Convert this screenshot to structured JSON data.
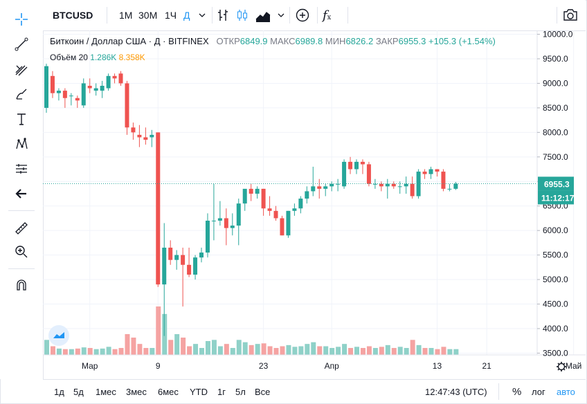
{
  "toolbar": {
    "symbol": "BTCUSD",
    "intervals": [
      "1M",
      "30M",
      "1Ч",
      "Д"
    ],
    "active_interval": "Д"
  },
  "legend": {
    "title": "Биткоин / Доллар США · Д · BITFINEX",
    "open_label": "ОТКР",
    "open": "6849.9",
    "high_label": "МАКС",
    "high": "6989.8",
    "low_label": "МИН",
    "low": "6826.2",
    "close_label": "ЗАКР",
    "close": "6955.3",
    "change": "+105.3 (+1.54%)",
    "volume_label": "Объём 20",
    "volume_1": "1.286K",
    "volume_2": "8.358K"
  },
  "price_label": "6955.3",
  "countdown_label": "11:12:17",
  "colors": {
    "up": "#26a69a",
    "down": "#ef5350",
    "vol_up": "#8fd1c8",
    "vol_down": "#f5a3a2",
    "accent": "#2196f3",
    "ma": "#ff9800"
  },
  "bottom": {
    "ranges": [
      "1д",
      "5д",
      "1мес",
      "3мес",
      "6мес",
      "YTD",
      "1г",
      "5л",
      "Все"
    ],
    "time": "12:47:43 (UTC)",
    "percent": "%",
    "log": "лог",
    "auto": "авто"
  },
  "chart_data": {
    "type": "candlestick",
    "title": "Биткоин / Доллар США · Д · BITFINEX",
    "y_ticks": [
      "10000.0",
      "9500.0",
      "9000.0",
      "8500.0",
      "8000.0",
      "7500.0",
      "7000.0",
      "6500.0",
      "6000.0",
      "5500.0",
      "5000.0",
      "4500.0",
      "4000.0",
      "3500.0"
    ],
    "ylim": [
      3450,
      10050
    ],
    "x_ticks": [
      "Мар",
      "9",
      "23",
      "Апр",
      "13",
      "21",
      "Май"
    ],
    "x_tick_index": [
      7,
      18,
      35,
      46,
      63,
      71,
      85
    ],
    "last_price": 6955.3,
    "candles": [
      {
        "o": 8500,
        "h": 9400,
        "l": 8400,
        "c": 9350,
        "v": 2.6
      },
      {
        "o": 9150,
        "h": 9250,
        "l": 8700,
        "c": 8800,
        "v": 1.5
      },
      {
        "o": 8800,
        "h": 8900,
        "l": 8650,
        "c": 8850,
        "v": 1.1
      },
      {
        "o": 8850,
        "h": 8900,
        "l": 8500,
        "c": 8700,
        "v": 1.0
      },
      {
        "o": 8750,
        "h": 8800,
        "l": 8550,
        "c": 8750,
        "v": 1.0
      },
      {
        "o": 8700,
        "h": 8750,
        "l": 8500,
        "c": 8650,
        "v": 1.1
      },
      {
        "o": 8550,
        "h": 9100,
        "l": 8500,
        "c": 9000,
        "v": 1.3
      },
      {
        "o": 8950,
        "h": 9100,
        "l": 8800,
        "c": 8900,
        "v": 1.2
      },
      {
        "o": 8850,
        "h": 9000,
        "l": 8750,
        "c": 8900,
        "v": 1.0
      },
      {
        "o": 8850,
        "h": 9050,
        "l": 8700,
        "c": 8950,
        "v": 1.1
      },
      {
        "o": 8900,
        "h": 9200,
        "l": 8850,
        "c": 9150,
        "v": 1.4
      },
      {
        "o": 9150,
        "h": 9200,
        "l": 9000,
        "c": 9100,
        "v": 1.0
      },
      {
        "o": 9200,
        "h": 9250,
        "l": 8950,
        "c": 9000,
        "v": 1.2
      },
      {
        "o": 9000,
        "h": 9050,
        "l": 7950,
        "c": 8100,
        "v": 3.6
      },
      {
        "o": 8100,
        "h": 8200,
        "l": 7850,
        "c": 8000,
        "v": 3.0
      },
      {
        "o": 7950,
        "h": 8150,
        "l": 7700,
        "c": 7900,
        "v": 1.9
      },
      {
        "o": 7900,
        "h": 8100,
        "l": 7750,
        "c": 7850,
        "v": 1.2
      },
      {
        "o": 7900,
        "h": 8050,
        "l": 7700,
        "c": 7950,
        "v": 1.2
      },
      {
        "o": 8000,
        "h": 8000,
        "l": 4850,
        "c": 4900,
        "v": 8.4
      },
      {
        "o": 4900,
        "h": 6150,
        "l": 3850,
        "c": 5650,
        "v": 7.1
      },
      {
        "o": 5650,
        "h": 5800,
        "l": 5300,
        "c": 5400,
        "v": 2.6
      },
      {
        "o": 5400,
        "h": 5600,
        "l": 5200,
        "c": 5500,
        "v": 3.6
      },
      {
        "o": 5500,
        "h": 5650,
        "l": 4450,
        "c": 5300,
        "v": 3.0
      },
      {
        "o": 5300,
        "h": 5650,
        "l": 5050,
        "c": 5100,
        "v": 1.5
      },
      {
        "o": 5100,
        "h": 5500,
        "l": 5000,
        "c": 5450,
        "v": 1.9
      },
      {
        "o": 5450,
        "h": 5650,
        "l": 5350,
        "c": 5550,
        "v": 1.2
      },
      {
        "o": 5550,
        "h": 6350,
        "l": 5450,
        "c": 6200,
        "v": 2.4
      },
      {
        "o": 6200,
        "h": 6950,
        "l": 5800,
        "c": 6200,
        "v": 2.6
      },
      {
        "o": 6200,
        "h": 6600,
        "l": 6100,
        "c": 6250,
        "v": 1.5
      },
      {
        "o": 6250,
        "h": 6450,
        "l": 5700,
        "c": 6050,
        "v": 1.9
      },
      {
        "o": 6050,
        "h": 6350,
        "l": 5900,
        "c": 6100,
        "v": 1.2
      },
      {
        "o": 6100,
        "h": 6650,
        "l": 5700,
        "c": 6550,
        "v": 2.6
      },
      {
        "o": 6550,
        "h": 6800,
        "l": 6400,
        "c": 6850,
        "v": 2.2
      },
      {
        "o": 6850,
        "h": 6950,
        "l": 6600,
        "c": 6750,
        "v": 1.7
      },
      {
        "o": 6750,
        "h": 6900,
        "l": 6650,
        "c": 6850,
        "v": 1.9
      },
      {
        "o": 6850,
        "h": 6850,
        "l": 6300,
        "c": 6450,
        "v": 2.0
      },
      {
        "o": 6450,
        "h": 6700,
        "l": 6300,
        "c": 6400,
        "v": 1.5
      },
      {
        "o": 6400,
        "h": 6500,
        "l": 6200,
        "c": 6250,
        "v": 1.2
      },
      {
        "o": 6250,
        "h": 6300,
        "l": 5900,
        "c": 5900,
        "v": 1.5
      },
      {
        "o": 5900,
        "h": 6400,
        "l": 5850,
        "c": 6400,
        "v": 1.7
      },
      {
        "o": 6400,
        "h": 6550,
        "l": 6300,
        "c": 6450,
        "v": 1.4
      },
      {
        "o": 6450,
        "h": 6700,
        "l": 6350,
        "c": 6650,
        "v": 1.5
      },
      {
        "o": 6650,
        "h": 6900,
        "l": 6550,
        "c": 6800,
        "v": 1.9
      },
      {
        "o": 6800,
        "h": 7300,
        "l": 6700,
        "c": 6900,
        "v": 2.2
      },
      {
        "o": 6900,
        "h": 7050,
        "l": 6650,
        "c": 6850,
        "v": 1.5
      },
      {
        "o": 6850,
        "h": 6950,
        "l": 6700,
        "c": 6900,
        "v": 1.5
      },
      {
        "o": 6900,
        "h": 7000,
        "l": 6800,
        "c": 6950,
        "v": 1.2
      },
      {
        "o": 6950,
        "h": 7050,
        "l": 6800,
        "c": 6950,
        "v": 1.4
      },
      {
        "o": 6900,
        "h": 7450,
        "l": 6850,
        "c": 7400,
        "v": 1.9
      },
      {
        "o": 7400,
        "h": 7500,
        "l": 7150,
        "c": 7250,
        "v": 1.2
      },
      {
        "o": 7250,
        "h": 7450,
        "l": 7150,
        "c": 7400,
        "v": 1.4
      },
      {
        "o": 7400,
        "h": 7450,
        "l": 7150,
        "c": 7350,
        "v": 1.2
      },
      {
        "o": 7350,
        "h": 7400,
        "l": 6900,
        "c": 6950,
        "v": 1.5
      },
      {
        "o": 6950,
        "h": 7050,
        "l": 6850,
        "c": 6950,
        "v": 1.2
      },
      {
        "o": 6950,
        "h": 7000,
        "l": 6800,
        "c": 6900,
        "v": 1.4
      },
      {
        "o": 6900,
        "h": 7050,
        "l": 6650,
        "c": 6950,
        "v": 1.7
      },
      {
        "o": 6950,
        "h": 7000,
        "l": 6850,
        "c": 6900,
        "v": 1.2
      },
      {
        "o": 6900,
        "h": 7000,
        "l": 6750,
        "c": 6900,
        "v": 1.4
      },
      {
        "o": 6900,
        "h": 7100,
        "l": 6750,
        "c": 6950,
        "v": 1.2
      },
      {
        "o": 6950,
        "h": 7100,
        "l": 6650,
        "c": 6700,
        "v": 2.6
      },
      {
        "o": 6700,
        "h": 7250,
        "l": 6650,
        "c": 7200,
        "v": 1.7
      },
      {
        "o": 7200,
        "h": 7250,
        "l": 7050,
        "c": 7150,
        "v": 1.2
      },
      {
        "o": 7150,
        "h": 7300,
        "l": 7050,
        "c": 7250,
        "v": 1.2
      },
      {
        "o": 7250,
        "h": 7250,
        "l": 7100,
        "c": 7200,
        "v": 1.0
      },
      {
        "o": 7200,
        "h": 7250,
        "l": 6800,
        "c": 6850,
        "v": 1.4
      },
      {
        "o": 6850,
        "h": 6950,
        "l": 6800,
        "c": 6850,
        "v": 1.0
      },
      {
        "o": 6849.9,
        "h": 6989.8,
        "l": 6826.2,
        "c": 6955.3,
        "v": 1.0
      }
    ]
  }
}
